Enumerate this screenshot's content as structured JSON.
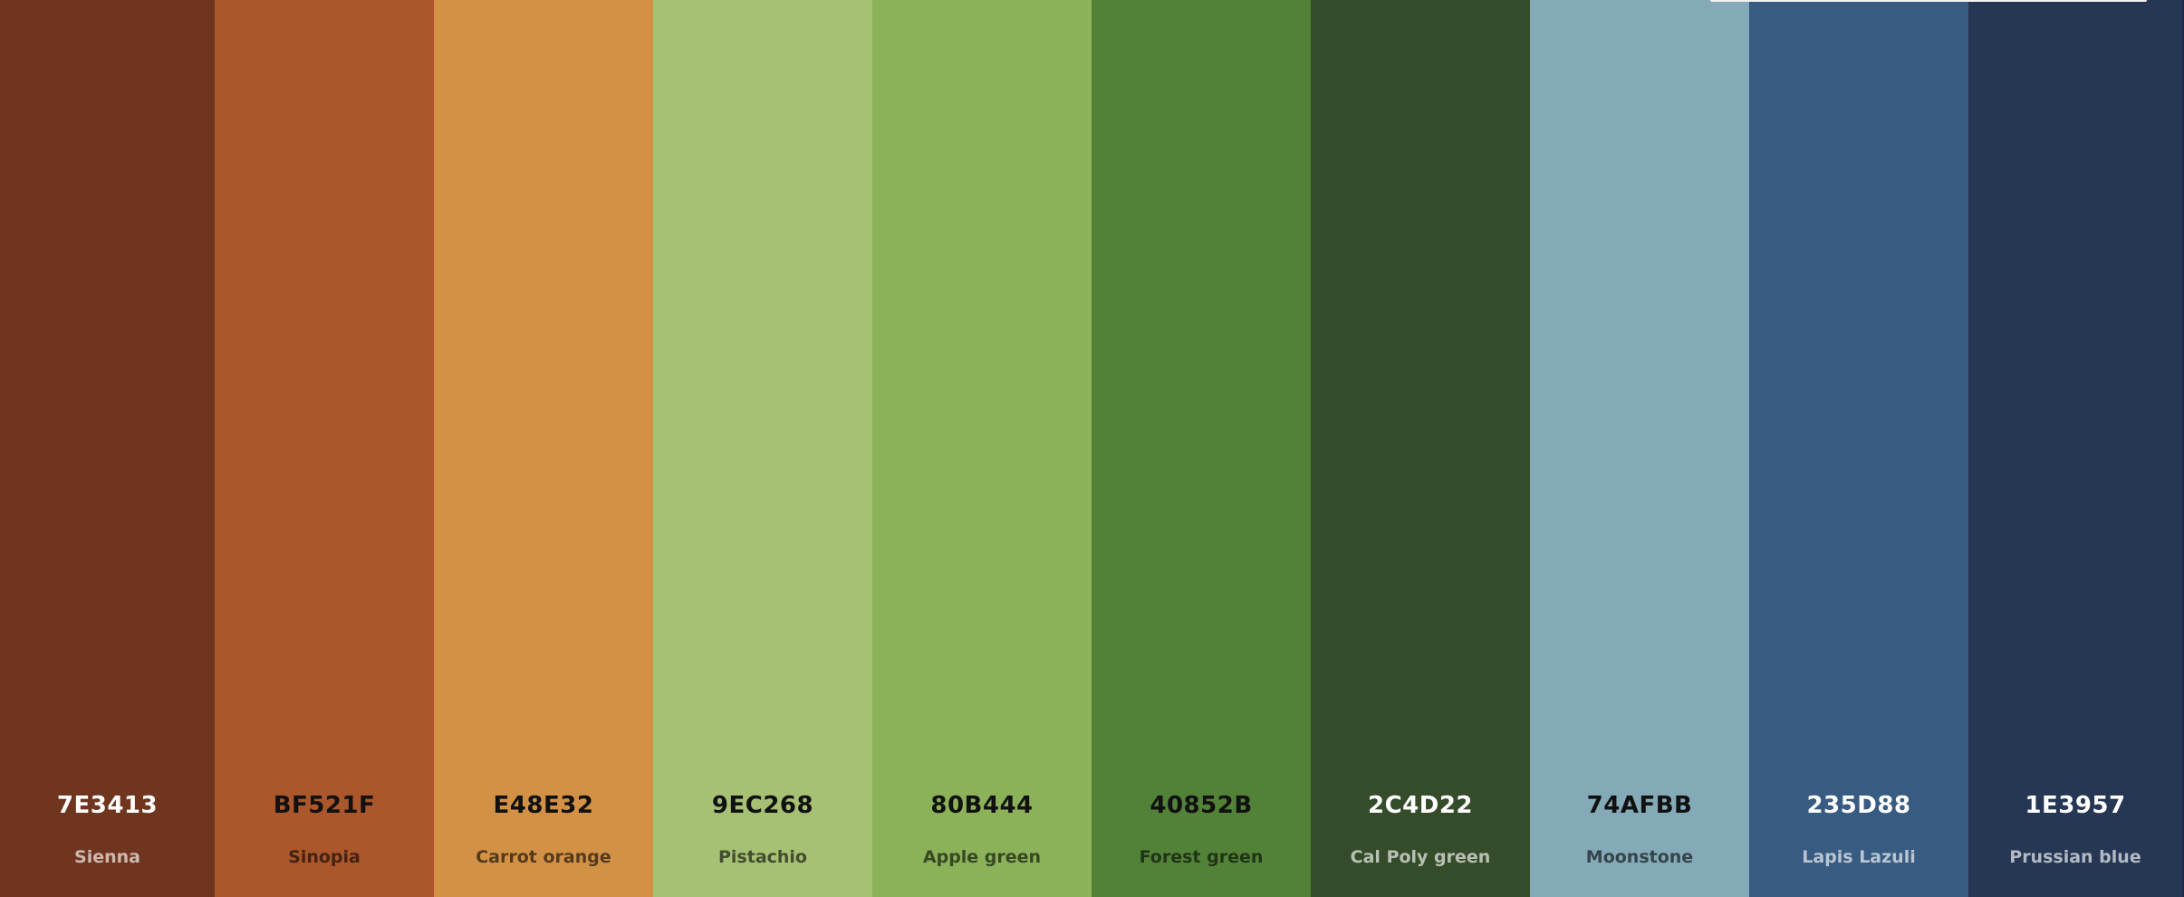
{
  "palette": {
    "swatches": [
      {
        "hex": "7E3413",
        "name": "Sienna",
        "color": "#6f351f",
        "text": "light"
      },
      {
        "hex": "BF521F",
        "name": "Sinopia",
        "color": "#ab562b",
        "text": "dark"
      },
      {
        "hex": "E48E32",
        "name": "Carrot orange",
        "color": "#d39146",
        "text": "dark"
      },
      {
        "hex": "9EC268",
        "name": "Pistachio",
        "color": "#a6c074",
        "text": "dark"
      },
      {
        "hex": "80B444",
        "name": "Apple green",
        "color": "#8bb258",
        "text": "dark"
      },
      {
        "hex": "40852B",
        "name": "Forest green",
        "color": "#528238",
        "text": "dark"
      },
      {
        "hex": "2C4D22",
        "name": "Cal Poly green",
        "color": "#344c29",
        "text": "light"
      },
      {
        "hex": "74AFBB",
        "name": "Moonstone",
        "color": "#84aab7",
        "text": "dark"
      },
      {
        "hex": "235D88",
        "name": "Lapis Lazuli",
        "color": "#385b81",
        "text": "light"
      },
      {
        "hex": "1E3957",
        "name": "Prussian blue",
        "color": "#263753",
        "text": "light"
      }
    ]
  }
}
